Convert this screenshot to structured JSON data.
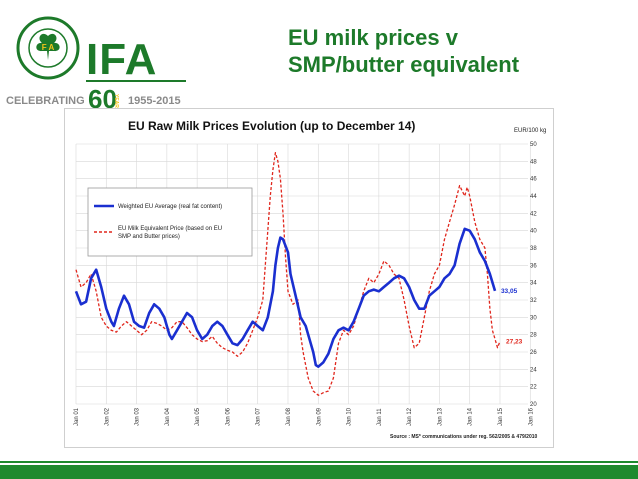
{
  "slide": {
    "title_line1": "EU milk prices v",
    "title_line2": "SMP/butter equivalent"
  },
  "logo": {
    "brand": "IFA",
    "ring_text": "Feirmeoirí Aontaithe na hÉireann · The Irish Farmers' Association",
    "celebrating": "CELEBRATING",
    "years_number": "60",
    "years_word": "YEARS",
    "span": "1955-2015",
    "colors": {
      "green": "#1d7a2a",
      "yellow": "#f3c51a",
      "grey": "#8a8a8a"
    }
  },
  "chart_data": {
    "type": "line",
    "title": "EU Raw Milk Prices Evolution (up to  December 14)",
    "ylabel": "EUR/100 kg",
    "ylim": [
      20,
      50
    ],
    "yticks": [
      20,
      22,
      24,
      26,
      28,
      30,
      32,
      34,
      36,
      38,
      40,
      42,
      44,
      46,
      48,
      50
    ],
    "xlim": [
      0,
      168
    ],
    "x_ticks": [
      {
        "label": "Jan 01",
        "x": 0
      },
      {
        "label": "Jan 02",
        "x": 12
      },
      {
        "label": "Jan 03",
        "x": 24
      },
      {
        "label": "Jan 04",
        "x": 36
      },
      {
        "label": "Jan 05",
        "x": 48
      },
      {
        "label": "Jan 06",
        "x": 60
      },
      {
        "label": "Jan 07",
        "x": 72
      },
      {
        "label": "Jan 08",
        "x": 84
      },
      {
        "label": "Jan 09",
        "x": 96
      },
      {
        "label": "Jan 10",
        "x": 108
      },
      {
        "label": "Jan 11",
        "x": 120
      },
      {
        "label": "Jan 12",
        "x": 132
      },
      {
        "label": "Jan 13",
        "x": 144
      },
      {
        "label": "Jan 14",
        "x": 156
      },
      {
        "label": "Jan 15",
        "x": 168
      },
      {
        "label": "Jan 16",
        "x": 180
      }
    ],
    "grid": true,
    "legend_position": "upper-left",
    "series": [
      {
        "name": "Weighted EU Average (real fat content)",
        "color": "#1a2fd0",
        "style": "solid",
        "end_label": "33,05",
        "points": [
          [
            0,
            33
          ],
          [
            2,
            31.5
          ],
          [
            4,
            31.8
          ],
          [
            6,
            34.5
          ],
          [
            8,
            35.5
          ],
          [
            10,
            33.5
          ],
          [
            12,
            31
          ],
          [
            14,
            29.5
          ],
          [
            15,
            29
          ],
          [
            17,
            31
          ],
          [
            19,
            32.5
          ],
          [
            21,
            31.5
          ],
          [
            23,
            29.5
          ],
          [
            25,
            29
          ],
          [
            27,
            28.8
          ],
          [
            29,
            30.5
          ],
          [
            31,
            31.5
          ],
          [
            33,
            31
          ],
          [
            35,
            30
          ],
          [
            37,
            28
          ],
          [
            38,
            27.5
          ],
          [
            40,
            28.5
          ],
          [
            42,
            29.5
          ],
          [
            44,
            30.5
          ],
          [
            46,
            30
          ],
          [
            48,
            28.5
          ],
          [
            50,
            27.5
          ],
          [
            52,
            28
          ],
          [
            54,
            29
          ],
          [
            56,
            29.5
          ],
          [
            58,
            29
          ],
          [
            60,
            28
          ],
          [
            62,
            27
          ],
          [
            64,
            26.8
          ],
          [
            66,
            27.5
          ],
          [
            68,
            28.5
          ],
          [
            70,
            29.5
          ],
          [
            72,
            29
          ],
          [
            74,
            28.5
          ],
          [
            76,
            30
          ],
          [
            78,
            33
          ],
          [
            79,
            36
          ],
          [
            80,
            38
          ],
          [
            81,
            39.2
          ],
          [
            82,
            39
          ],
          [
            84,
            37.5
          ],
          [
            85,
            35
          ],
          [
            87,
            32.5
          ],
          [
            89,
            30
          ],
          [
            91,
            29
          ],
          [
            93,
            27
          ],
          [
            94,
            26
          ],
          [
            95,
            24.5
          ],
          [
            96,
            24.3
          ],
          [
            98,
            24.8
          ],
          [
            100,
            25.8
          ],
          [
            102,
            27.5
          ],
          [
            104,
            28.5
          ],
          [
            106,
            28.8
          ],
          [
            108,
            28.5
          ],
          [
            110,
            29.5
          ],
          [
            112,
            31
          ],
          [
            114,
            32.5
          ],
          [
            116,
            33
          ],
          [
            118,
            33.2
          ],
          [
            120,
            33
          ],
          [
            122,
            33.5
          ],
          [
            124,
            34
          ],
          [
            126,
            34.5
          ],
          [
            128,
            34.8
          ],
          [
            130,
            34.5
          ],
          [
            132,
            33.5
          ],
          [
            134,
            32
          ],
          [
            136,
            31
          ],
          [
            138,
            31
          ],
          [
            140,
            32.5
          ],
          [
            142,
            33
          ],
          [
            144,
            33.5
          ],
          [
            146,
            34.5
          ],
          [
            148,
            35
          ],
          [
            150,
            36
          ],
          [
            152,
            38.5
          ],
          [
            154,
            40.2
          ],
          [
            156,
            40
          ],
          [
            158,
            39
          ],
          [
            160,
            37.5
          ],
          [
            162,
            36.5
          ],
          [
            164,
            35
          ],
          [
            166,
            33.05
          ]
        ]
      },
      {
        "name": "EU Milk Equivalent Price (based on EU SMP and Butter prices)",
        "color": "#e0261c",
        "style": "dashed",
        "end_label": "27,23",
        "points": [
          [
            0,
            35.5
          ],
          [
            2,
            33.5
          ],
          [
            4,
            34
          ],
          [
            6,
            35
          ],
          [
            8,
            33
          ],
          [
            10,
            30
          ],
          [
            12,
            29
          ],
          [
            14,
            28.5
          ],
          [
            16,
            28.3
          ],
          [
            18,
            29
          ],
          [
            20,
            29.5
          ],
          [
            22,
            29
          ],
          [
            24,
            28.5
          ],
          [
            26,
            28
          ],
          [
            28,
            28.5
          ],
          [
            30,
            29.5
          ],
          [
            32,
            29.3
          ],
          [
            34,
            29
          ],
          [
            36,
            28.5
          ],
          [
            38,
            28.8
          ],
          [
            40,
            29.5
          ],
          [
            42,
            29.5
          ],
          [
            44,
            28.8
          ],
          [
            46,
            28
          ],
          [
            48,
            27.5
          ],
          [
            50,
            27.2
          ],
          [
            52,
            27.3
          ],
          [
            54,
            27.8
          ],
          [
            56,
            27
          ],
          [
            58,
            26.5
          ],
          [
            60,
            26.2
          ],
          [
            62,
            26
          ],
          [
            64,
            25.5
          ],
          [
            66,
            26
          ],
          [
            68,
            27
          ],
          [
            70,
            28.5
          ],
          [
            72,
            30
          ],
          [
            74,
            32
          ],
          [
            75,
            36
          ],
          [
            76,
            40
          ],
          [
            77,
            44
          ],
          [
            78,
            47
          ],
          [
            79,
            49
          ],
          [
            80,
            48
          ],
          [
            81,
            46
          ],
          [
            82,
            42
          ],
          [
            83,
            37
          ],
          [
            84,
            33
          ],
          [
            86,
            31.5
          ],
          [
            88,
            32
          ],
          [
            89,
            28
          ],
          [
            90,
            26
          ],
          [
            92,
            23
          ],
          [
            94,
            21.5
          ],
          [
            96,
            21
          ],
          [
            98,
            21.3
          ],
          [
            100,
            21.5
          ],
          [
            102,
            23
          ],
          [
            104,
            27
          ],
          [
            106,
            28.5
          ],
          [
            108,
            28
          ],
          [
            110,
            29
          ],
          [
            112,
            31
          ],
          [
            114,
            33
          ],
          [
            116,
            34.5
          ],
          [
            118,
            34
          ],
          [
            120,
            35
          ],
          [
            122,
            36.5
          ],
          [
            124,
            36
          ],
          [
            126,
            35
          ],
          [
            128,
            34.5
          ],
          [
            130,
            32
          ],
          [
            132,
            29
          ],
          [
            134,
            26.5
          ],
          [
            136,
            27
          ],
          [
            138,
            30
          ],
          [
            140,
            33
          ],
          [
            142,
            35
          ],
          [
            144,
            36
          ],
          [
            146,
            39
          ],
          [
            148,
            41
          ],
          [
            150,
            43
          ],
          [
            152,
            45.2
          ],
          [
            154,
            44
          ],
          [
            155,
            45
          ],
          [
            156,
            44
          ],
          [
            158,
            41
          ],
          [
            160,
            39
          ],
          [
            162,
            38
          ],
          [
            163,
            35
          ],
          [
            164,
            31
          ],
          [
            165,
            28.5
          ],
          [
            166,
            27.5
          ],
          [
            167,
            26.5
          ],
          [
            168,
            27.23
          ]
        ]
      }
    ],
    "source": "Source : MS* communications under reg. 562/2005 & 479/2010"
  }
}
